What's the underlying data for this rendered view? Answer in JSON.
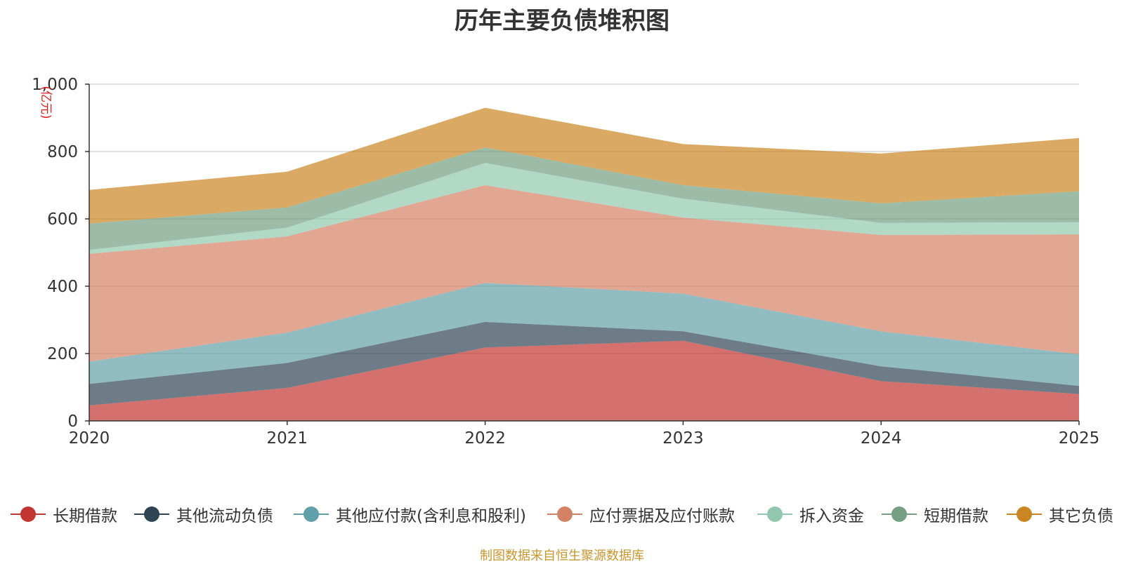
{
  "chart_data": {
    "type": "area",
    "stacked": true,
    "title": "历年主要负债堆积图",
    "unit_label": "(亿元)",
    "x": [
      "2020",
      "2021",
      "2022",
      "2023",
      "2024",
      "2025"
    ],
    "ylim": [
      0,
      1000
    ],
    "y_ticks": [
      "0",
      "200",
      "400",
      "600",
      "800",
      "1,000"
    ],
    "grid": true,
    "legend_position": "bottom",
    "series": [
      {
        "name": "长期借款",
        "color": "#c23531",
        "values": [
          46,
          98,
          218,
          238,
          118,
          80
        ]
      },
      {
        "name": "其他流动负债",
        "color": "#2f4554",
        "values": [
          64,
          74,
          76,
          28,
          44,
          24
        ]
      },
      {
        "name": "其他应付款(含利息和股利)",
        "color": "#61a0a8",
        "values": [
          66,
          90,
          116,
          112,
          104,
          94
        ]
      },
      {
        "name": "应付票据及应付账款",
        "color": "#d48265",
        "values": [
          320,
          286,
          290,
          226,
          286,
          356
        ]
      },
      {
        "name": "拆入资金",
        "color": "#91c7ae",
        "values": [
          12,
          26,
          66,
          56,
          36,
          36
        ]
      },
      {
        "name": "短期借款",
        "color": "#749f83",
        "values": [
          78,
          60,
          46,
          40,
          58,
          92
        ]
      },
      {
        "name": "其它负债",
        "color": "#ca8622",
        "values": [
          100,
          106,
          118,
          122,
          148,
          158
        ]
      }
    ]
  },
  "source_note": "制图数据来自恒生聚源数据库"
}
